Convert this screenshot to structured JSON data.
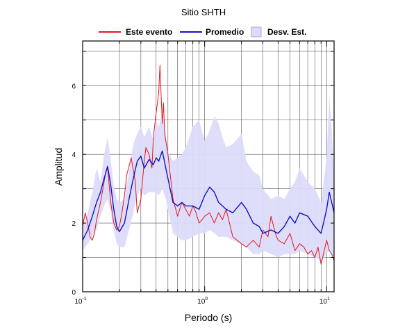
{
  "chart_data": {
    "type": "line",
    "title": "Sitio SHTH",
    "xlabel": "Periodo (s)",
    "ylabel": "Amplitud",
    "x_scale": "log",
    "xlim": [
      0.1,
      11.5
    ],
    "ylim": [
      0,
      7.3
    ],
    "grid": true,
    "legend_position": "top",
    "x_ticks": [
      {
        "value": 0.1,
        "base": "10",
        "exp": "-1"
      },
      {
        "value": 1,
        "base": "10",
        "exp": "0"
      },
      {
        "value": 10,
        "base": "10",
        "exp": "1"
      }
    ],
    "y_ticks": [
      0,
      2,
      4,
      6
    ],
    "series": [
      {
        "name": "Este evento",
        "color": "#e8141e",
        "kind": "line",
        "x": [
          0.1,
          0.105,
          0.11,
          0.115,
          0.12,
          0.125,
          0.13,
          0.14,
          0.15,
          0.155,
          0.16,
          0.165,
          0.17,
          0.18,
          0.19,
          0.2,
          0.21,
          0.22,
          0.23,
          0.25,
          0.27,
          0.28,
          0.3,
          0.32,
          0.33,
          0.35,
          0.37,
          0.38,
          0.4,
          0.42,
          0.43,
          0.44,
          0.45,
          0.46,
          0.47,
          0.5,
          0.55,
          0.6,
          0.65,
          0.7,
          0.75,
          0.8,
          0.85,
          0.9,
          0.95,
          1.0,
          1.1,
          1.2,
          1.3,
          1.4,
          1.5,
          1.7,
          2.0,
          2.2,
          2.5,
          2.8,
          3.0,
          3.3,
          3.5,
          3.8,
          4.0,
          4.5,
          5.0,
          5.5,
          6.0,
          6.5,
          7.0,
          7.5,
          8.0,
          8.5,
          9.0,
          10.0,
          10.5,
          11.0,
          11.5
        ],
        "y": [
          1.9,
          2.3,
          2.0,
          1.6,
          1.5,
          1.7,
          2.1,
          2.6,
          3.2,
          3.5,
          3.6,
          3.1,
          2.6,
          2.0,
          1.8,
          1.9,
          2.3,
          2.8,
          3.4,
          3.9,
          3.2,
          2.3,
          2.7,
          3.8,
          4.2,
          4.0,
          3.6,
          4.5,
          5.2,
          5.8,
          6.6,
          5.7,
          4.9,
          5.5,
          4.6,
          4.0,
          2.7,
          2.2,
          2.6,
          2.4,
          2.2,
          2.5,
          2.3,
          2.0,
          2.1,
          2.2,
          2.3,
          2.0,
          2.3,
          2.1,
          2.4,
          1.6,
          1.4,
          1.3,
          1.5,
          1.3,
          1.8,
          1.6,
          2.2,
          1.7,
          1.5,
          1.4,
          1.7,
          1.2,
          1.4,
          1.3,
          1.1,
          1.2,
          1.0,
          1.3,
          0.8,
          1.5,
          1.2,
          1.1,
          0.9
        ]
      },
      {
        "name": "Promedio",
        "color": "#1010c8",
        "kind": "line",
        "x": [
          0.1,
          0.11,
          0.12,
          0.13,
          0.14,
          0.15,
          0.16,
          0.17,
          0.18,
          0.19,
          0.2,
          0.22,
          0.24,
          0.26,
          0.28,
          0.3,
          0.32,
          0.35,
          0.38,
          0.4,
          0.42,
          0.45,
          0.48,
          0.5,
          0.55,
          0.6,
          0.65,
          0.7,
          0.8,
          0.9,
          1.0,
          1.1,
          1.2,
          1.3,
          1.4,
          1.5,
          1.7,
          2.0,
          2.2,
          2.5,
          2.8,
          3.0,
          3.5,
          4.0,
          4.5,
          5.0,
          5.5,
          6.0,
          7.0,
          8.0,
          9.0,
          10.0,
          10.5,
          11.0,
          11.5
        ],
        "y": [
          1.5,
          1.8,
          2.2,
          2.6,
          2.9,
          3.3,
          3.65,
          3.1,
          2.4,
          1.9,
          1.75,
          2.0,
          2.7,
          3.3,
          3.8,
          3.95,
          3.6,
          3.85,
          3.7,
          3.9,
          3.8,
          4.1,
          3.6,
          3.3,
          2.6,
          2.5,
          2.6,
          2.5,
          2.5,
          2.4,
          2.8,
          3.05,
          2.9,
          2.6,
          2.5,
          2.4,
          2.3,
          2.6,
          2.4,
          2.0,
          1.9,
          1.7,
          1.8,
          1.7,
          1.9,
          2.2,
          2.0,
          2.3,
          2.2,
          1.9,
          1.7,
          2.4,
          2.9,
          2.6,
          2.3
        ]
      },
      {
        "name": "Desv. Est.",
        "color": "#dcdcfa",
        "kind": "band",
        "x": [
          0.1,
          0.11,
          0.12,
          0.13,
          0.14,
          0.15,
          0.16,
          0.17,
          0.18,
          0.19,
          0.2,
          0.22,
          0.24,
          0.26,
          0.28,
          0.3,
          0.32,
          0.35,
          0.38,
          0.4,
          0.42,
          0.45,
          0.48,
          0.5,
          0.55,
          0.6,
          0.65,
          0.7,
          0.8,
          0.9,
          1.0,
          1.1,
          1.2,
          1.3,
          1.4,
          1.5,
          1.7,
          2.0,
          2.2,
          2.5,
          2.8,
          3.0,
          3.5,
          4.0,
          4.5,
          5.0,
          5.5,
          6.0,
          7.0,
          8.0,
          9.0,
          10.0,
          10.5,
          11.0,
          11.5
        ],
        "upper": [
          1.9,
          2.3,
          2.9,
          3.6,
          3.2,
          4.0,
          4.5,
          3.8,
          3.1,
          2.7,
          2.6,
          2.7,
          3.5,
          4.3,
          4.6,
          4.8,
          4.5,
          4.8,
          4.4,
          5.0,
          4.8,
          5.2,
          4.6,
          4.1,
          3.8,
          3.9,
          4.0,
          4.2,
          4.8,
          5.0,
          4.4,
          4.7,
          5.1,
          4.9,
          4.5,
          4.2,
          4.3,
          4.6,
          3.8,
          3.5,
          3.4,
          3.0,
          2.7,
          2.8,
          2.7,
          3.0,
          3.2,
          3.6,
          3.2,
          3.0,
          2.6,
          3.9,
          5.7,
          4.7,
          3.4
        ],
        "lower": [
          1.2,
          1.4,
          1.6,
          1.8,
          2.2,
          2.5,
          2.7,
          2.3,
          1.8,
          1.4,
          1.3,
          1.3,
          1.8,
          2.3,
          2.8,
          3.0,
          2.8,
          2.9,
          2.9,
          2.9,
          2.8,
          3.0,
          2.7,
          2.4,
          1.7,
          1.6,
          1.5,
          1.5,
          1.6,
          1.7,
          1.7,
          1.8,
          1.7,
          1.6,
          1.6,
          1.6,
          1.5,
          1.4,
          1.3,
          1.1,
          1.1,
          1.2,
          1.1,
          1.0,
          1.1,
          1.1,
          1.1,
          1.2,
          1.1,
          1.0,
          0.9,
          1.1,
          1.2,
          1.1,
          1.0
        ]
      }
    ]
  }
}
